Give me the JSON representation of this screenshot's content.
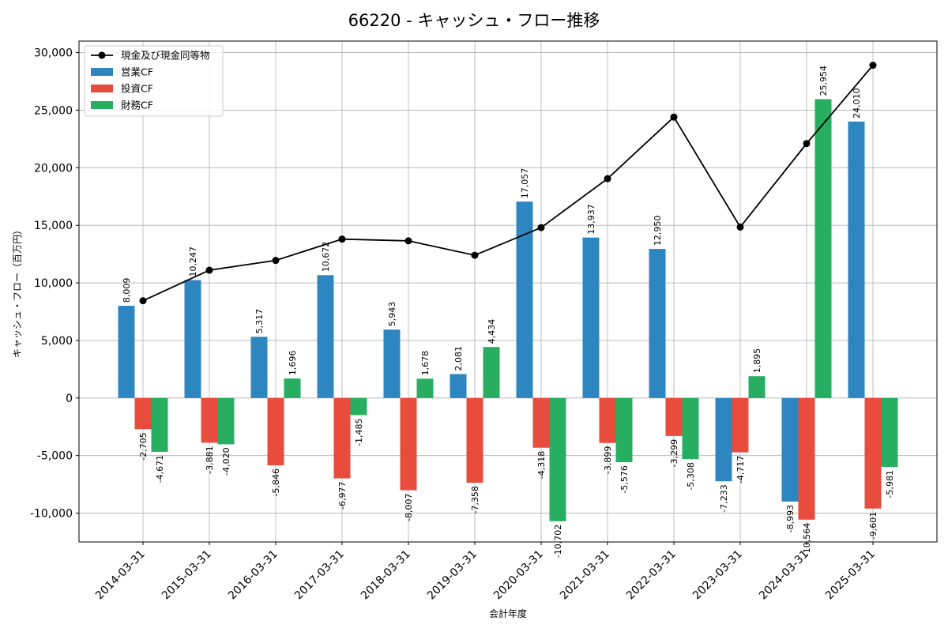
{
  "chart_data": {
    "type": "bar",
    "title": "66220 - キャッシュ・フロー推移",
    "xlabel": "会計年度",
    "ylabel": "キャッシュ・フロー（百万円）",
    "ylim": [
      -12500,
      31000
    ],
    "yticks": [
      -10000,
      -5000,
      0,
      5000,
      10000,
      15000,
      20000,
      25000,
      30000
    ],
    "ytick_labels": [
      "-10,000",
      "-5,000",
      "0",
      "5,000",
      "10,000",
      "15,000",
      "20,000",
      "25,000",
      "30,000"
    ],
    "grid": true,
    "legend_position": "top-left",
    "categories": [
      "2014-03-31",
      "2015-03-31",
      "2016-03-31",
      "2017-03-31",
      "2018-03-31",
      "2019-03-31",
      "2020-03-31",
      "2021-03-31",
      "2022-03-31",
      "2023-03-31",
      "2024-03-31",
      "2025-03-31"
    ],
    "series": [
      {
        "name": "営業CF",
        "kind": "bar",
        "color": "#2e86c1",
        "values": [
          8009,
          10247,
          5317,
          10672,
          5943,
          2081,
          17057,
          13937,
          12950,
          -7233,
          -8993,
          24010
        ],
        "labels": [
          "8,009",
          "10,247",
          "5,317",
          "10,672",
          "5,943",
          "2,081",
          "17,057",
          "13,937",
          "12,950",
          "-7,233",
          "-8,993",
          "24,010"
        ]
      },
      {
        "name": "投資CF",
        "kind": "bar",
        "color": "#e74c3c",
        "values": [
          -2705,
          -3881,
          -5846,
          -6977,
          -8007,
          -7358,
          -4318,
          -3899,
          -3299,
          -4717,
          -10564,
          -9601
        ],
        "labels": [
          "-2,705",
          "-3,881",
          "-5,846",
          "-6,977",
          "-8,007",
          "-7,358",
          "-4,318",
          "-3,899",
          "-3,299",
          "-4,717",
          "-10,564",
          "-9,601"
        ]
      },
      {
        "name": "財務CF",
        "kind": "bar",
        "color": "#27ae60",
        "values": [
          -4671,
          -4020,
          1696,
          -1485,
          1678,
          4434,
          -10702,
          -5576,
          -5308,
          1895,
          25954,
          -5981
        ],
        "labels": [
          "-4,671",
          "-4,020",
          "1,696",
          "-1,485",
          "1,678",
          "4,434",
          "-10,702",
          "-5,576",
          "-5,308",
          "1,895",
          "25,954",
          "-5,981"
        ]
      },
      {
        "name": "現金及び現金同等物",
        "kind": "line",
        "color": "#000000",
        "values": [
          8450,
          11100,
          11950,
          13800,
          13650,
          12400,
          14800,
          19050,
          24400,
          14850,
          22100,
          28900
        ]
      }
    ]
  }
}
